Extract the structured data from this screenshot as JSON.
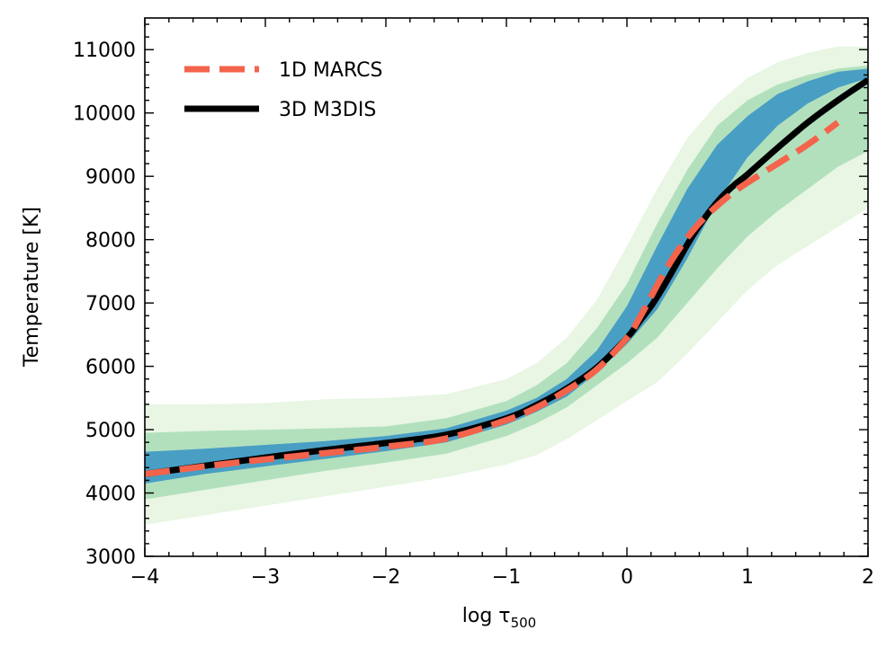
{
  "chart_data": {
    "type": "line",
    "title": "",
    "xlabel_main": "log τ",
    "xlabel_sub": "500",
    "ylabel": "Temperature [K]",
    "xlim": [
      -4,
      2
    ],
    "ylim": [
      3000,
      11500
    ],
    "x_ticks": [
      -4,
      -3,
      -2,
      -1,
      0,
      1,
      2
    ],
    "x_tick_labels": [
      "−4",
      "−3",
      "−2",
      "−1",
      "0",
      "1",
      "2"
    ],
    "y_ticks": [
      3000,
      4000,
      5000,
      6000,
      7000,
      8000,
      9000,
      10000,
      11000
    ],
    "y_tick_labels": [
      "3000",
      "4000",
      "5000",
      "6000",
      "7000",
      "8000",
      "9000",
      "10000",
      "11000"
    ],
    "legend_position": "top-left",
    "series": [
      {
        "name": "1D MARCS",
        "style": "dashed",
        "color": "#f4634b",
        "x": [
          -4.0,
          -3.5,
          -3.0,
          -2.5,
          -2.0,
          -1.5,
          -1.0,
          -0.75,
          -0.5,
          -0.25,
          0.0,
          0.1,
          0.2,
          0.3,
          0.4,
          0.5,
          0.6,
          0.7,
          0.8,
          0.9,
          1.0,
          1.25,
          1.5,
          1.75
        ],
        "y": [
          4300,
          4420,
          4530,
          4630,
          4730,
          4860,
          5150,
          5350,
          5620,
          5950,
          6450,
          6750,
          7100,
          7450,
          7760,
          8030,
          8260,
          8450,
          8620,
          8770,
          8900,
          9200,
          9500,
          9850
        ]
      },
      {
        "name": "3D M3DIS",
        "style": "solid",
        "color": "#000000",
        "x": [
          -4.0,
          -3.5,
          -3.0,
          -2.5,
          -2.0,
          -1.5,
          -1.0,
          -0.75,
          -0.5,
          -0.25,
          0.0,
          0.1,
          0.2,
          0.3,
          0.4,
          0.5,
          0.6,
          0.7,
          0.8,
          0.9,
          1.0,
          1.25,
          1.5,
          1.75,
          2.0
        ],
        "y": [
          4300,
          4430,
          4560,
          4680,
          4790,
          4920,
          5180,
          5390,
          5650,
          5980,
          6450,
          6700,
          6950,
          7250,
          7580,
          7920,
          8220,
          8480,
          8700,
          8880,
          9030,
          9450,
          9850,
          10200,
          10520
        ]
      }
    ],
    "density": {
      "description_colors": [
        "#2c7fb8",
        "#41b6c4",
        "#a1dab4",
        "#e5f5e0"
      ],
      "x": [
        -4.0,
        -3.5,
        -3.0,
        -2.5,
        -2.0,
        -1.5,
        -1.0,
        -0.75,
        -0.5,
        -0.25,
        0.0,
        0.25,
        0.5,
        0.75,
        1.0,
        1.25,
        1.5,
        1.75,
        2.0
      ],
      "outer_low": [
        3500,
        3650,
        3800,
        3950,
        4100,
        4250,
        4450,
        4600,
        4850,
        5150,
        5450,
        5750,
        6200,
        6700,
        7200,
        7600,
        7900,
        8200,
        8500
      ],
      "outer_high": [
        5400,
        5400,
        5420,
        5480,
        5500,
        5560,
        5800,
        6050,
        6450,
        7050,
        7900,
        8800,
        9600,
        10150,
        10550,
        10800,
        10950,
        11050,
        11050
      ],
      "inner_low": [
        3900,
        4050,
        4200,
        4350,
        4480,
        4620,
        4900,
        5100,
        5350,
        5700,
        6050,
        6450,
        7000,
        7550,
        8050,
        8450,
        8800,
        9150,
        9400
      ],
      "inner_high": [
        4950,
        4980,
        5000,
        5020,
        5050,
        5180,
        5450,
        5700,
        6050,
        6600,
        7300,
        8250,
        9100,
        9800,
        10200,
        10450,
        10600,
        10700,
        10750
      ],
      "core_low": [
        4150,
        4300,
        4420,
        4540,
        4660,
        4800,
        5080,
        5280,
        5520,
        5900,
        6350,
        6900,
        7700,
        8600,
        9300,
        9800,
        10150,
        10400,
        10550
      ],
      "core_high": [
        4650,
        4700,
        4760,
        4820,
        4900,
        5020,
        5300,
        5500,
        5800,
        6250,
        6950,
        7900,
        8800,
        9500,
        9950,
        10300,
        10500,
        10650,
        10700
      ]
    }
  }
}
